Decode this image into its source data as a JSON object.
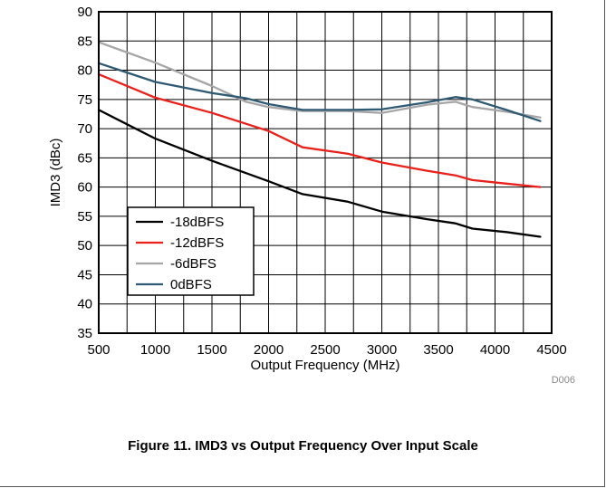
{
  "figure": {
    "caption": "Figure 11. IMD3 vs Output Frequency Over Input Scale",
    "code": "D006"
  },
  "chart_data": {
    "type": "line",
    "xlabel": "Output Frequency (MHz)",
    "ylabel": "IMD3 (dBc)",
    "xlim": [
      500,
      4500
    ],
    "ylim": [
      35,
      90
    ],
    "x_ticks": [
      500,
      1000,
      1500,
      2000,
      2500,
      3000,
      3500,
      4000,
      4500
    ],
    "y_ticks": [
      35,
      40,
      45,
      50,
      55,
      60,
      65,
      70,
      75,
      80,
      85,
      90
    ],
    "grid": true,
    "legend_position": "lower-left",
    "series": [
      {
        "name": "-18dBFS",
        "color": "#000000",
        "points": [
          [
            500,
            73.2
          ],
          [
            1000,
            68.3
          ],
          [
            1500,
            64.5
          ],
          [
            2000,
            61.0
          ],
          [
            2300,
            58.8
          ],
          [
            2700,
            57.5
          ],
          [
            3000,
            55.8
          ],
          [
            3400,
            54.5
          ],
          [
            3650,
            53.8
          ],
          [
            3800,
            52.9
          ],
          [
            4100,
            52.3
          ],
          [
            4400,
            51.5
          ]
        ]
      },
      {
        "name": "-12dBFS",
        "color": "#e8211b",
        "points": [
          [
            500,
            79.3
          ],
          [
            1000,
            75.3
          ],
          [
            1500,
            72.7
          ],
          [
            2000,
            69.6
          ],
          [
            2300,
            66.8
          ],
          [
            2700,
            65.7
          ],
          [
            3000,
            64.2
          ],
          [
            3400,
            62.8
          ],
          [
            3650,
            62.0
          ],
          [
            3800,
            61.2
          ],
          [
            4100,
            60.6
          ],
          [
            4400,
            60.0
          ]
        ]
      },
      {
        "name": "-6dBFS",
        "color": "#a6a6a6",
        "points": [
          [
            500,
            84.8
          ],
          [
            1000,
            81.3
          ],
          [
            1500,
            77.3
          ],
          [
            1800,
            74.6
          ],
          [
            2000,
            73.7
          ],
          [
            2300,
            73.0
          ],
          [
            2700,
            73.0
          ],
          [
            3000,
            72.7
          ],
          [
            3400,
            74.1
          ],
          [
            3650,
            74.6
          ],
          [
            3800,
            73.7
          ],
          [
            4100,
            72.9
          ],
          [
            4400,
            71.9
          ]
        ]
      },
      {
        "name": "0dBFS",
        "color": "#2e5a73",
        "points": [
          [
            500,
            81.2
          ],
          [
            1000,
            78.0
          ],
          [
            1500,
            76.1
          ],
          [
            1800,
            75.2
          ],
          [
            2000,
            74.2
          ],
          [
            2300,
            73.2
          ],
          [
            2700,
            73.2
          ],
          [
            3000,
            73.3
          ],
          [
            3400,
            74.5
          ],
          [
            3650,
            75.4
          ],
          [
            3800,
            75.0
          ],
          [
            4100,
            73.2
          ],
          [
            4400,
            71.3
          ]
        ]
      }
    ]
  }
}
